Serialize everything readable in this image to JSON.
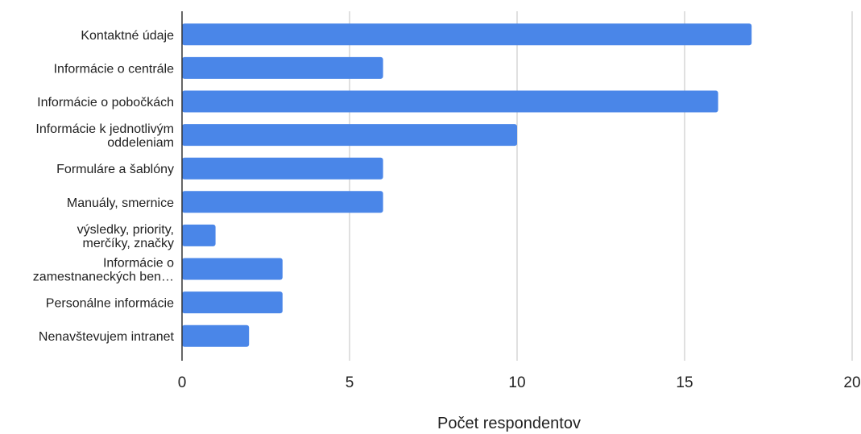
{
  "chart_data": {
    "type": "bar",
    "orientation": "horizontal",
    "categories": [
      [
        "Kontaktné údaje"
      ],
      [
        "Informácie o centrále"
      ],
      [
        "Informácie o pobočkách"
      ],
      [
        "Informácie k jednotlivým",
        "oddeleniam"
      ],
      [
        "Formuláre a šablóny"
      ],
      [
        "Manuály, smernice"
      ],
      [
        "výsledky, priority,",
        "merčíky, značky"
      ],
      [
        "Informácie o",
        "zamestnaneckých ben…"
      ],
      [
        "Personálne informácie"
      ],
      [
        "Nenavštevujem intranet"
      ]
    ],
    "values": [
      17,
      6,
      16,
      10,
      6,
      6,
      1,
      3,
      3,
      2
    ],
    "xlim": [
      0,
      20
    ],
    "xticks": [
      "0",
      "5",
      "10",
      "15",
      "20"
    ],
    "xlabel": "Počet respondentov",
    "ylabel": "",
    "title": "",
    "grid": "vertical",
    "legend": "none",
    "bar_color": "#4a86e8",
    "grid_color": "#cccccc",
    "axis_color": "#333333"
  }
}
